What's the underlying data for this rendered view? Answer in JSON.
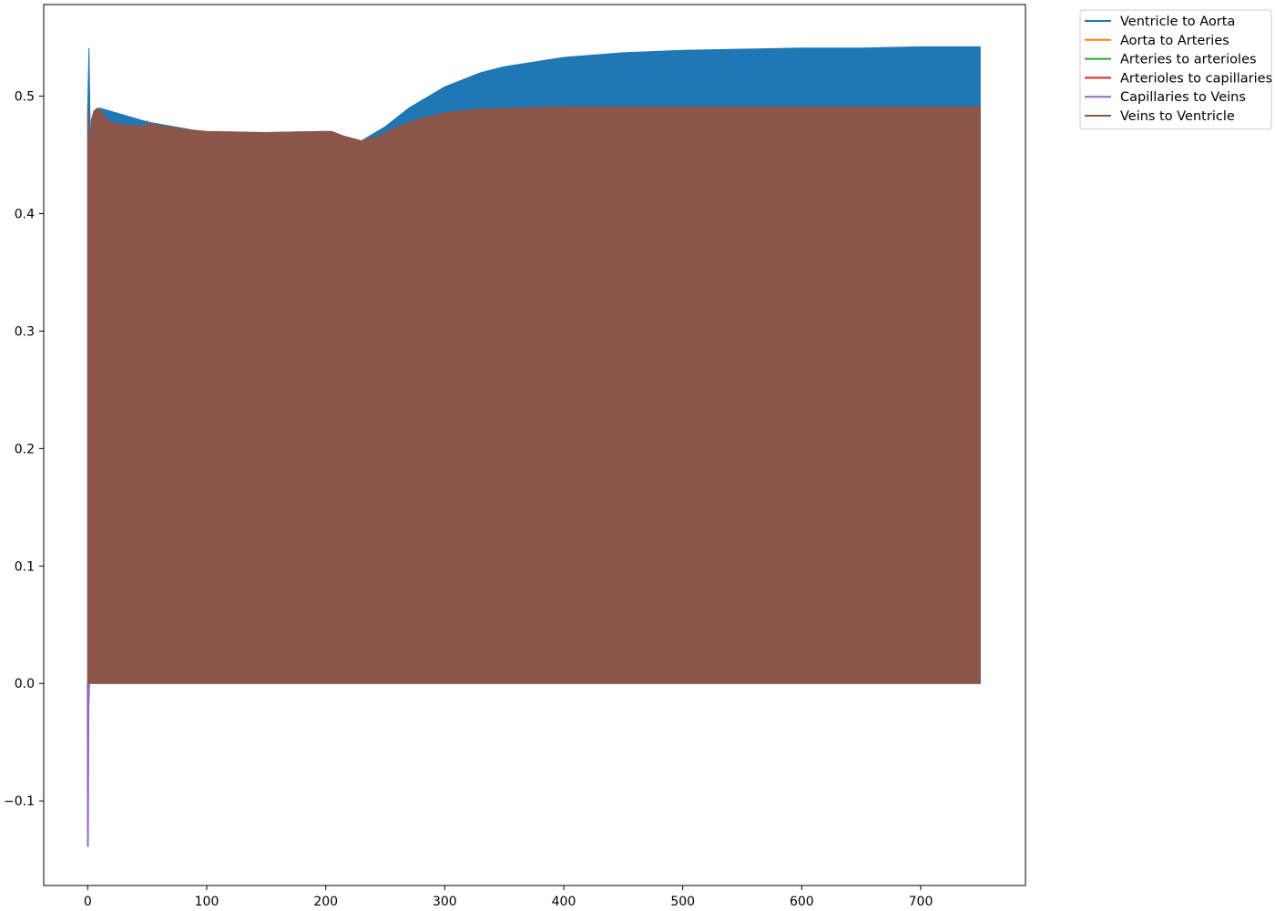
{
  "chart_data": {
    "type": "area",
    "title": "",
    "xlabel": "",
    "ylabel": "",
    "xlim": [
      -37,
      788
    ],
    "ylim": [
      -0.172,
      0.578
    ],
    "xticks": [
      0,
      100,
      200,
      300,
      400,
      500,
      600,
      700
    ],
    "xtick_labels": [
      "0",
      "100",
      "200",
      "300",
      "400",
      "500",
      "600",
      "700"
    ],
    "yticks": [
      -0.1,
      0.0,
      0.1,
      0.2,
      0.3,
      0.4,
      0.5
    ],
    "ytick_labels": [
      "−0.1",
      "0.0",
      "0.1",
      "0.2",
      "0.3",
      "0.4",
      "0.5"
    ],
    "grid": false,
    "legend_position": "outside upper right",
    "series": [
      {
        "name": "Ventricle to Aorta",
        "color": "#1f77b4",
        "style": "dense oscillation between 0 and upper envelope",
        "lower": 0.0,
        "upper_envelope": {
          "x": [
            0,
            1,
            2,
            10,
            50,
            100,
            150,
            200,
            230,
            250,
            270,
            300,
            330,
            350,
            400,
            450,
            500,
            550,
            600,
            650,
            700,
            750
          ],
          "y": [
            0.49,
            0.541,
            0.47,
            0.49,
            0.478,
            0.469,
            0.469,
            0.47,
            0.462,
            0.474,
            0.49,
            0.508,
            0.52,
            0.525,
            0.533,
            0.537,
            0.539,
            0.54,
            0.541,
            0.541,
            0.542,
            0.542
          ]
        }
      },
      {
        "name": "Aorta to Arteries",
        "color": "#ff7f0e",
        "style": "hidden behind other series",
        "lower": 0.0,
        "upper_envelope": {
          "x": [
            0,
            750
          ],
          "y": [
            0.0,
            0.0
          ]
        }
      },
      {
        "name": "Arteries to arterioles",
        "color": "#2ca02c",
        "style": "hidden behind other series",
        "lower": 0.0,
        "upper_envelope": {
          "x": [
            0,
            750
          ],
          "y": [
            0.0,
            0.0
          ]
        }
      },
      {
        "name": "Arterioles to capillaries",
        "color": "#d62728",
        "style": "hidden behind other series",
        "lower": 0.0,
        "upper_envelope": {
          "x": [
            0,
            750
          ],
          "y": [
            0.0,
            0.0
          ]
        }
      },
      {
        "name": "Capillaries to Veins",
        "color": "#9467bd",
        "style": "initial transient",
        "x": [
          0,
          0.1,
          0.3,
          0.6,
          1.2,
          2.0
        ],
        "y": [
          0.0,
          -0.139,
          -0.1,
          -0.02,
          0.0,
          0.0
        ]
      },
      {
        "name": "Veins to Ventricle",
        "color": "#8c564b",
        "style": "dense oscillation between 0 and upper envelope",
        "lower": 0.0,
        "upper_envelope": {
          "x": [
            0,
            2,
            3,
            5,
            8,
            12,
            16,
            25,
            40,
            49,
            50,
            51,
            55,
            80,
            100,
            150,
            200,
            205,
            215,
            230,
            245,
            260,
            280,
            300,
            330,
            360,
            400,
            500,
            600,
            700,
            750
          ],
          "y": [
            0.491,
            0.45,
            0.48,
            0.487,
            0.49,
            0.486,
            0.48,
            0.476,
            0.475,
            0.474,
            0.479,
            0.477,
            0.476,
            0.472,
            0.47,
            0.469,
            0.47,
            0.47,
            0.466,
            0.462,
            0.466,
            0.474,
            0.481,
            0.486,
            0.489,
            0.49,
            0.491,
            0.491,
            0.491,
            0.491,
            0.491
          ]
        }
      }
    ]
  }
}
